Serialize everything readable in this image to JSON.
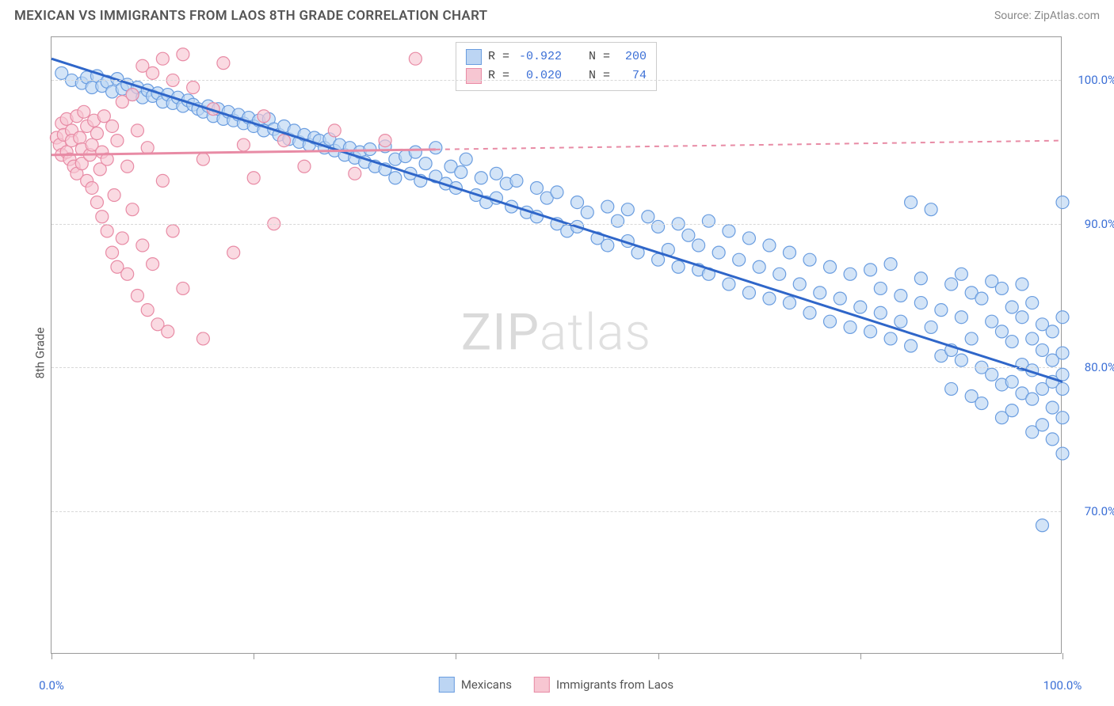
{
  "title": "MEXICAN VS IMMIGRANTS FROM LAOS 8TH GRADE CORRELATION CHART",
  "source": "Source: ZipAtlas.com",
  "ylabel": "8th Grade",
  "watermark_a": "ZIP",
  "watermark_b": "atlas",
  "chart": {
    "type": "scatter",
    "background_color": "#ffffff",
    "grid_color": "#d8d8d8",
    "border_color": "#999999",
    "xlim": [
      0,
      100
    ],
    "ylim": [
      60,
      103
    ],
    "ytick_values": [
      70,
      80,
      90,
      100
    ],
    "ytick_labels": [
      "70.0%",
      "80.0%",
      "90.0%",
      "100.0%"
    ],
    "xtick_values": [
      0,
      20,
      40,
      60,
      80,
      100
    ],
    "xtick_labels": {
      "0": "0.0%",
      "100": "100.0%"
    },
    "label_color": "#3b6fd6",
    "label_fontsize": 15,
    "marker_radius": 8,
    "marker_stroke_width": 1.2,
    "trend_line_width": 3,
    "series": [
      {
        "name": "Mexicans",
        "label": "Mexicans",
        "fill": "#bcd5f3",
        "stroke": "#6a9de0",
        "fill_opacity": 0.65,
        "R": "-0.922",
        "N": "200",
        "trend": {
          "x1": 0,
          "y1": 101.5,
          "x2": 100,
          "y2": 79,
          "color": "#2f66c9",
          "dash": "none"
        },
        "points": [
          [
            1,
            100.5
          ],
          [
            2,
            100
          ],
          [
            3,
            99.8
          ],
          [
            3.5,
            100.2
          ],
          [
            4,
            99.5
          ],
          [
            4.5,
            100.3
          ],
          [
            5,
            99.6
          ],
          [
            5.5,
            99.9
          ],
          [
            6,
            99.2
          ],
          [
            6.5,
            100.1
          ],
          [
            7,
            99.4
          ],
          [
            7.5,
            99.7
          ],
          [
            8,
            99
          ],
          [
            8.5,
            99.5
          ],
          [
            9,
            98.8
          ],
          [
            9.5,
            99.3
          ],
          [
            10,
            98.9
          ],
          [
            10.5,
            99.1
          ],
          [
            11,
            98.5
          ],
          [
            11.5,
            99
          ],
          [
            12,
            98.4
          ],
          [
            12.5,
            98.8
          ],
          [
            13,
            98.2
          ],
          [
            13.5,
            98.6
          ],
          [
            14,
            98.3
          ],
          [
            14.5,
            98
          ],
          [
            15,
            97.8
          ],
          [
            15.5,
            98.2
          ],
          [
            16,
            97.5
          ],
          [
            16.5,
            98
          ],
          [
            17,
            97.3
          ],
          [
            17.5,
            97.8
          ],
          [
            18,
            97.2
          ],
          [
            18.5,
            97.6
          ],
          [
            19,
            97
          ],
          [
            19.5,
            97.4
          ],
          [
            20,
            96.8
          ],
          [
            20.5,
            97.2
          ],
          [
            21,
            96.5
          ],
          [
            21.5,
            97.3
          ],
          [
            22,
            96.6
          ],
          [
            22.5,
            96.2
          ],
          [
            23,
            96.8
          ],
          [
            23.5,
            95.9
          ],
          [
            24,
            96.5
          ],
          [
            24.5,
            95.7
          ],
          [
            25,
            96.2
          ],
          [
            25.5,
            95.5
          ],
          [
            26,
            96
          ],
          [
            26.5,
            95.8
          ],
          [
            27,
            95.3
          ],
          [
            27.5,
            95.9
          ],
          [
            28,
            95.1
          ],
          [
            28.5,
            95.5
          ],
          [
            29,
            94.8
          ],
          [
            29.5,
            95.3
          ],
          [
            30,
            94.6
          ],
          [
            30.5,
            95
          ],
          [
            31,
            94.3
          ],
          [
            31.5,
            95.2
          ],
          [
            32,
            94
          ],
          [
            33,
            95.4
          ],
          [
            33,
            93.8
          ],
          [
            34,
            94.5
          ],
          [
            34,
            93.2
          ],
          [
            35,
            94.7
          ],
          [
            35.5,
            93.5
          ],
          [
            36,
            95
          ],
          [
            36.5,
            93
          ],
          [
            37,
            94.2
          ],
          [
            38,
            93.3
          ],
          [
            38,
            95.3
          ],
          [
            39,
            92.8
          ],
          [
            39.5,
            94
          ],
          [
            40,
            92.5
          ],
          [
            40.5,
            93.6
          ],
          [
            41,
            94.5
          ],
          [
            42,
            92
          ],
          [
            42.5,
            93.2
          ],
          [
            43,
            91.5
          ],
          [
            44,
            93.5
          ],
          [
            44,
            91.8
          ],
          [
            45,
            92.8
          ],
          [
            45.5,
            91.2
          ],
          [
            46,
            93
          ],
          [
            47,
            90.8
          ],
          [
            48,
            92.5
          ],
          [
            48,
            90.5
          ],
          [
            49,
            91.8
          ],
          [
            50,
            90
          ],
          [
            50,
            92.2
          ],
          [
            51,
            89.5
          ],
          [
            52,
            91.5
          ],
          [
            52,
            89.8
          ],
          [
            53,
            90.8
          ],
          [
            54,
            89
          ],
          [
            55,
            91.2
          ],
          [
            55,
            88.5
          ],
          [
            56,
            90.2
          ],
          [
            57,
            88.8
          ],
          [
            57,
            91
          ],
          [
            58,
            88
          ],
          [
            59,
            90.5
          ],
          [
            60,
            87.5
          ],
          [
            60,
            89.8
          ],
          [
            61,
            88.2
          ],
          [
            62,
            90
          ],
          [
            62,
            87
          ],
          [
            63,
            89.2
          ],
          [
            64,
            86.8
          ],
          [
            64,
            88.5
          ],
          [
            65,
            90.2
          ],
          [
            65,
            86.5
          ],
          [
            66,
            88
          ],
          [
            67,
            89.5
          ],
          [
            67,
            85.8
          ],
          [
            68,
            87.5
          ],
          [
            69,
            89
          ],
          [
            69,
            85.2
          ],
          [
            70,
            87
          ],
          [
            71,
            88.5
          ],
          [
            71,
            84.8
          ],
          [
            72,
            86.5
          ],
          [
            73,
            88
          ],
          [
            73,
            84.5
          ],
          [
            74,
            85.8
          ],
          [
            75,
            87.5
          ],
          [
            75,
            83.8
          ],
          [
            76,
            85.2
          ],
          [
            77,
            87
          ],
          [
            77,
            83.2
          ],
          [
            78,
            84.8
          ],
          [
            79,
            86.5
          ],
          [
            79,
            82.8
          ],
          [
            80,
            84.2
          ],
          [
            81,
            86.8
          ],
          [
            81,
            82.5
          ],
          [
            82,
            85.5
          ],
          [
            82,
            83.8
          ],
          [
            83,
            87.2
          ],
          [
            83,
            82
          ],
          [
            84,
            85
          ],
          [
            84,
            83.2
          ],
          [
            85,
            91.5
          ],
          [
            85,
            81.5
          ],
          [
            86,
            84.5
          ],
          [
            86,
            86.2
          ],
          [
            87,
            82.8
          ],
          [
            87,
            91
          ],
          [
            88,
            80.8
          ],
          [
            88,
            84
          ],
          [
            89,
            85.8
          ],
          [
            89,
            81.2
          ],
          [
            89,
            78.5
          ],
          [
            90,
            83.5
          ],
          [
            90,
            86.5
          ],
          [
            90,
            80.5
          ],
          [
            91,
            85.2
          ],
          [
            91,
            82
          ],
          [
            91,
            78
          ],
          [
            92,
            84.8
          ],
          [
            92,
            80
          ],
          [
            92,
            77.5
          ],
          [
            93,
            83.2
          ],
          [
            93,
            86
          ],
          [
            93,
            79.5
          ],
          [
            94,
            82.5
          ],
          [
            94,
            85.5
          ],
          [
            94,
            78.8
          ],
          [
            94,
            76.5
          ],
          [
            95,
            81.8
          ],
          [
            95,
            84.2
          ],
          [
            95,
            79
          ],
          [
            95,
            77
          ],
          [
            96,
            83.5
          ],
          [
            96,
            80.2
          ],
          [
            96,
            78.2
          ],
          [
            96,
            85.8
          ],
          [
            97,
            82
          ],
          [
            97,
            79.8
          ],
          [
            97,
            77.8
          ],
          [
            97,
            75.5
          ],
          [
            97,
            84.5
          ],
          [
            98,
            81.2
          ],
          [
            98,
            78.5
          ],
          [
            98,
            83
          ],
          [
            98,
            76
          ],
          [
            98,
            69
          ],
          [
            99,
            80.5
          ],
          [
            99,
            77.2
          ],
          [
            99,
            82.5
          ],
          [
            99,
            75
          ],
          [
            99,
            79
          ],
          [
            100,
            78.5
          ],
          [
            100,
            81
          ],
          [
            100,
            76.5
          ],
          [
            100,
            83.5
          ],
          [
            100,
            74
          ],
          [
            100,
            79.5
          ],
          [
            100,
            91.5
          ]
        ]
      },
      {
        "name": "Immigrants from Laos",
        "label": "Immigrants from Laos",
        "fill": "#f7c6d2",
        "stroke": "#e88ba5",
        "fill_opacity": 0.65,
        "R": "0.020",
        "N": "74",
        "trend": {
          "x1": 0,
          "y1": 94.8,
          "x2": 100,
          "y2": 95.8,
          "color": "#e88ba5",
          "dash": "solid_then_dash",
          "solid_until": 38
        },
        "points": [
          [
            0.5,
            96
          ],
          [
            0.8,
            95.5
          ],
          [
            1,
            97
          ],
          [
            1,
            94.8
          ],
          [
            1.2,
            96.2
          ],
          [
            1.5,
            95
          ],
          [
            1.5,
            97.3
          ],
          [
            1.8,
            94.5
          ],
          [
            2,
            96.5
          ],
          [
            2,
            95.8
          ],
          [
            2.2,
            94
          ],
          [
            2.5,
            97.5
          ],
          [
            2.5,
            93.5
          ],
          [
            2.8,
            96
          ],
          [
            3,
            95.2
          ],
          [
            3,
            94.2
          ],
          [
            3.2,
            97.8
          ],
          [
            3.5,
            93
          ],
          [
            3.5,
            96.8
          ],
          [
            3.8,
            94.8
          ],
          [
            4,
            92.5
          ],
          [
            4,
            95.5
          ],
          [
            4.2,
            97.2
          ],
          [
            4.5,
            91.5
          ],
          [
            4.5,
            96.3
          ],
          [
            4.8,
            93.8
          ],
          [
            5,
            90.5
          ],
          [
            5,
            95
          ],
          [
            5.2,
            97.5
          ],
          [
            5.5,
            89.5
          ],
          [
            5.5,
            94.5
          ],
          [
            6,
            88
          ],
          [
            6,
            96.8
          ],
          [
            6.2,
            92
          ],
          [
            6.5,
            87
          ],
          [
            6.5,
            95.8
          ],
          [
            7,
            89
          ],
          [
            7,
            98.5
          ],
          [
            7.5,
            86.5
          ],
          [
            7.5,
            94
          ],
          [
            8,
            91
          ],
          [
            8,
            99
          ],
          [
            8.5,
            85
          ],
          [
            8.5,
            96.5
          ],
          [
            9,
            88.5
          ],
          [
            9,
            101
          ],
          [
            9.5,
            84
          ],
          [
            9.5,
            95.3
          ],
          [
            10,
            87.2
          ],
          [
            10,
            100.5
          ],
          [
            10.5,
            83
          ],
          [
            11,
            101.5
          ],
          [
            11,
            93
          ],
          [
            11.5,
            82.5
          ],
          [
            12,
            100
          ],
          [
            12,
            89.5
          ],
          [
            13,
            101.8
          ],
          [
            13,
            85.5
          ],
          [
            14,
            99.5
          ],
          [
            15,
            94.5
          ],
          [
            15,
            82
          ],
          [
            16,
            98
          ],
          [
            17,
            101.2
          ],
          [
            18,
            88
          ],
          [
            19,
            95.5
          ],
          [
            20,
            93.2
          ],
          [
            21,
            97.5
          ],
          [
            22,
            90
          ],
          [
            23,
            95.8
          ],
          [
            25,
            94
          ],
          [
            28,
            96.5
          ],
          [
            30,
            93.5
          ],
          [
            33,
            95.8
          ],
          [
            36,
            101.5
          ]
        ]
      }
    ]
  },
  "legend": {
    "r_label": "R =",
    "n_label": "N ="
  },
  "bottom_legend": {
    "items": [
      "Mexicans",
      "Immigrants from Laos"
    ]
  }
}
